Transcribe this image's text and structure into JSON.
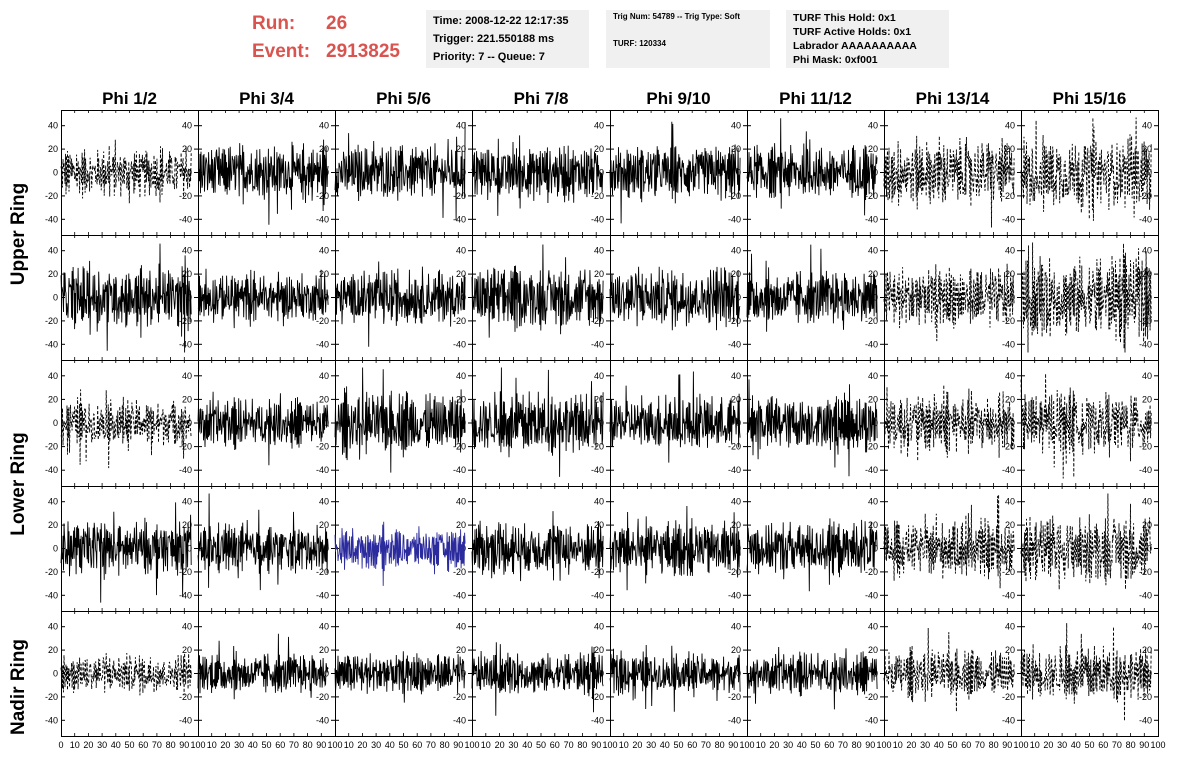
{
  "run_info": {
    "run_label": "Run:",
    "run_value": "26",
    "event_label": "Event:",
    "event_value": "2913825"
  },
  "info_box_1": {
    "time": "Time: 2008-12-22 12:17:35",
    "trigger": "Trigger: 221.550188 ms",
    "priority": "Priority: 7 -- Queue: 7"
  },
  "info_box_2": {
    "trig": "Trig Num: 54789 -- Trig Type: Soft",
    "turf": "TURF: 120334"
  },
  "info_box_3": {
    "hold": "TURF This Hold: 0x1",
    "active": "TURF Active Holds: 0x1",
    "labrador": "Labrador AAAAAAAAAA",
    "phimask": "Phi Mask: 0xf001"
  },
  "colors": {
    "trace": "#000000",
    "highlight": "#2b2b9e",
    "title_red": "#d9534f",
    "box_bg": "#f0f0f0"
  },
  "chart_data": {
    "type": "line",
    "grid": "8 columns x 5 rows of waveform panels",
    "columns": [
      "Phi 1/2",
      "Phi 3/4",
      "Phi 5/6",
      "Phi 7/8",
      "Phi 9/10",
      "Phi 11/12",
      "Phi 13/14",
      "Phi 15/16"
    ],
    "rows": [
      "Upper Ring",
      "Lower Ring",
      "Nadir Ring"
    ],
    "ylim": [
      -50,
      50
    ],
    "y_ticks": [
      -40,
      -20,
      0,
      20,
      40
    ],
    "xlim": [
      0,
      100
    ],
    "x_ticks": [
      0,
      10,
      20,
      30,
      40,
      50,
      60,
      70,
      80,
      90,
      100
    ],
    "grid_lines": false,
    "samples_per_trace": 260,
    "trace_x_range": [
      0,
      95
    ],
    "panel_styles": [
      [
        "dashed",
        "solid",
        "solid",
        "solid",
        "solid",
        "solid",
        "dashed",
        "dashed"
      ],
      [
        "solid",
        "solid",
        "solid",
        "solid",
        "solid",
        "solid",
        "dashed",
        "dashed"
      ],
      [
        "dashed",
        "solid",
        "solid",
        "solid",
        "solid",
        "solid",
        "dashed",
        "dashed"
      ],
      [
        "solid",
        "solid",
        "highlight",
        "solid",
        "solid",
        "solid",
        "dashed",
        "dashed"
      ],
      [
        "dashed",
        "solid",
        "solid",
        "solid",
        "solid",
        "solid",
        "dashed",
        "dashed"
      ]
    ],
    "panel_amplitude": [
      [
        14,
        16,
        16,
        16,
        16,
        16,
        20,
        22
      ],
      [
        18,
        14,
        16,
        18,
        18,
        16,
        18,
        24
      ],
      [
        14,
        14,
        18,
        18,
        16,
        16,
        18,
        18
      ],
      [
        16,
        14,
        12,
        16,
        16,
        16,
        16,
        20
      ],
      [
        12,
        12,
        12,
        12,
        12,
        12,
        14,
        16
      ]
    ],
    "highlighted_panel": {
      "row": 3,
      "col": 2,
      "series_color": "#2b2b9e"
    }
  }
}
